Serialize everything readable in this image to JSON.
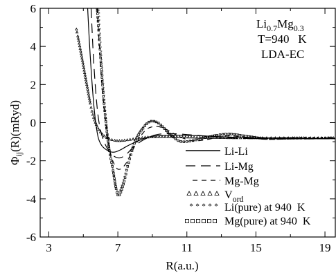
{
  "chart_data": {
    "type": "line",
    "title_lines": [
      {
        "main": "Li",
        "sub": "0.7",
        "main2": "Mg",
        "sub2": "0.3"
      },
      {
        "text": "T=940   K"
      },
      {
        "text": "LDA-EC"
      }
    ],
    "xlabel": "R(a.u.)",
    "ylabel_main": "Φ",
    "ylabel_sub": "ij",
    "ylabel_rest": "(R)(mRyd)",
    "xlim": [
      2.5,
      19.6
    ],
    "ylim": [
      -6,
      6
    ],
    "x_ticks": [
      3,
      7,
      11,
      15,
      19
    ],
    "y_ticks": [
      -6,
      -4,
      -2,
      0,
      2,
      4,
      6
    ],
    "x_minor_ticks": [
      5,
      9,
      13,
      17
    ],
    "y_minor_ticks": [
      -5,
      -3,
      -1,
      1,
      3,
      5
    ],
    "x_tick_labels": [
      "3",
      "7",
      "11",
      "15",
      "19"
    ],
    "y_tick_labels": [
      "-6",
      "-4",
      "-2",
      "0",
      "2",
      "4",
      "6"
    ],
    "legend_position": "bottom-right",
    "series": [
      {
        "name": "Li-Li",
        "style": "solid",
        "points": [
          [
            5.25,
            6.0
          ],
          [
            5.4,
            3.5
          ],
          [
            5.6,
            1.0
          ],
          [
            5.8,
            -0.5
          ],
          [
            6.0,
            -1.1
          ],
          [
            6.3,
            -1.4
          ],
          [
            6.7,
            -1.55
          ],
          [
            7.1,
            -1.45
          ],
          [
            7.6,
            -1.2
          ],
          [
            8.2,
            -0.95
          ],
          [
            8.8,
            -0.75
          ],
          [
            9.5,
            -0.68
          ],
          [
            10.5,
            -0.66
          ],
          [
            11.5,
            -0.68
          ],
          [
            12.5,
            -0.72
          ],
          [
            13.5,
            -0.76
          ],
          [
            14.5,
            -0.8
          ],
          [
            16,
            -0.82
          ],
          [
            17.5,
            -0.83
          ],
          [
            19.6,
            -0.83
          ]
        ]
      },
      {
        "name": "Li-Mg",
        "style": "long-dash",
        "points": [
          [
            5.45,
            6.0
          ],
          [
            5.6,
            3.2
          ],
          [
            5.8,
            0.8
          ],
          [
            6.0,
            -0.4
          ],
          [
            6.3,
            -1.2
          ],
          [
            6.7,
            -1.7
          ],
          [
            7.1,
            -1.85
          ],
          [
            7.5,
            -1.65
          ],
          [
            8.0,
            -1.2
          ],
          [
            8.6,
            -0.85
          ],
          [
            9.3,
            -0.62
          ],
          [
            10.2,
            -0.58
          ],
          [
            11.2,
            -0.64
          ],
          [
            12.3,
            -0.72
          ],
          [
            13.5,
            -0.8
          ],
          [
            15,
            -0.84
          ],
          [
            17,
            -0.85
          ],
          [
            19.6,
            -0.85
          ]
        ]
      },
      {
        "name": "Mg-Mg",
        "style": "short-dash",
        "points": [
          [
            5.8,
            6.0
          ],
          [
            6.0,
            3.0
          ],
          [
            6.2,
            0.8
          ],
          [
            6.5,
            -1.3
          ],
          [
            6.8,
            -2.2
          ],
          [
            7.1,
            -2.45
          ],
          [
            7.5,
            -2.1
          ],
          [
            8.0,
            -1.2
          ],
          [
            8.6,
            -0.4
          ],
          [
            9.2,
            -0.2
          ],
          [
            9.8,
            -0.35
          ],
          [
            10.5,
            -0.7
          ],
          [
            11.3,
            -0.95
          ],
          [
            12.2,
            -0.88
          ],
          [
            13.2,
            -0.7
          ],
          [
            14.3,
            -0.75
          ],
          [
            15.5,
            -0.87
          ],
          [
            17,
            -0.85
          ],
          [
            19.6,
            -0.84
          ]
        ]
      },
      {
        "name": "V_ord",
        "style": "triangles",
        "points": [
          [
            4.6,
            4.9
          ],
          [
            4.9,
            3.5
          ],
          [
            5.2,
            2.0
          ],
          [
            5.5,
            0.6
          ],
          [
            5.8,
            -0.2
          ],
          [
            6.1,
            -0.6
          ],
          [
            6.5,
            -0.85
          ],
          [
            7.0,
            -0.95
          ],
          [
            7.6,
            -0.9
          ],
          [
            8.3,
            -0.8
          ],
          [
            9.0,
            -0.75
          ],
          [
            10.0,
            -0.74
          ],
          [
            11.0,
            -0.76
          ],
          [
            12.0,
            -0.78
          ],
          [
            13.0,
            -0.79
          ],
          [
            14.0,
            -0.8
          ],
          [
            15.5,
            -0.8
          ],
          [
            17.0,
            -0.8
          ],
          [
            18.5,
            -0.8
          ],
          [
            19.5,
            -0.8
          ]
        ]
      },
      {
        "name": "Li(pure) at 940  K",
        "style": "asterisks",
        "points": [
          [
            5.9,
            6.0
          ],
          [
            6.05,
            3.5
          ],
          [
            6.25,
            1.0
          ],
          [
            6.5,
            -1.3
          ],
          [
            6.75,
            -2.6
          ],
          [
            7.0,
            -3.65
          ],
          [
            7.3,
            -3.1
          ],
          [
            7.6,
            -2.0
          ],
          [
            8.0,
            -0.9
          ],
          [
            8.5,
            -0.2
          ],
          [
            8.9,
            0.05
          ],
          [
            9.4,
            -0.1
          ],
          [
            10.0,
            -0.65
          ],
          [
            10.6,
            -1.0
          ],
          [
            11.3,
            -0.97
          ],
          [
            12.0,
            -0.82
          ],
          [
            12.8,
            -0.68
          ],
          [
            13.5,
            -0.6
          ],
          [
            14.5,
            -0.7
          ],
          [
            15.5,
            -0.82
          ],
          [
            17,
            -0.82
          ],
          [
            19.5,
            -0.8
          ]
        ]
      },
      {
        "name": "Mg(pure) at 940  K",
        "style": "squares",
        "points": [
          [
            5.8,
            6.0
          ],
          [
            6.0,
            3.4
          ],
          [
            6.2,
            1.0
          ],
          [
            6.45,
            -1.1
          ],
          [
            6.7,
            -2.4
          ],
          [
            7.0,
            -3.8
          ],
          [
            7.3,
            -3.3
          ],
          [
            7.6,
            -2.2
          ],
          [
            8.0,
            -1.0
          ],
          [
            8.5,
            -0.25
          ],
          [
            8.9,
            0.07
          ],
          [
            9.4,
            -0.05
          ],
          [
            10.0,
            -0.6
          ],
          [
            10.6,
            -0.98
          ],
          [
            11.3,
            -0.95
          ],
          [
            12.0,
            -0.8
          ],
          [
            12.8,
            -0.65
          ],
          [
            13.5,
            -0.6
          ],
          [
            14.5,
            -0.72
          ],
          [
            15.5,
            -0.83
          ],
          [
            17,
            -0.82
          ],
          [
            19.5,
            -0.8
          ]
        ]
      }
    ]
  }
}
